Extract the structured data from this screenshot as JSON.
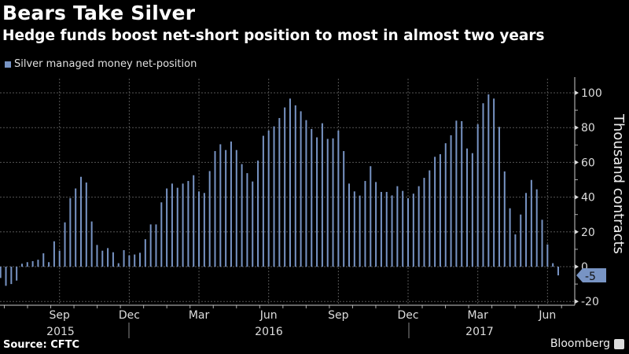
{
  "title": "Bears Take Silver",
  "subtitle": "Hedge funds boost net-short position to most in almost two years",
  "source": "Source: CFTC",
  "brand": "Bloomberg",
  "colors": {
    "bar": "#7894c4",
    "background": "#000000",
    "grid": "#555555"
  },
  "chart_data": {
    "type": "bar",
    "title": "Bears Take Silver",
    "subtitle": "Hedge funds boost net-short position to most in almost two years",
    "legend": [
      "Silver managed money net-position"
    ],
    "legend_position": "top-left",
    "series": [
      {
        "name": "Silver managed money net-position",
        "values": [
          -6.5,
          -11,
          -10,
          -8,
          1.7,
          2.6,
          3.2,
          4,
          7.7,
          2.6,
          14.6,
          9.2,
          25.5,
          39.4,
          45,
          51.7,
          48.4,
          26,
          12.5,
          9.2,
          10.7,
          8.3,
          2,
          9.5,
          6.5,
          7,
          8,
          15.8,
          24.3,
          24.3,
          37,
          45,
          47.8,
          45.4,
          47.8,
          49.3,
          52.6,
          43.3,
          42.4,
          55,
          66.5,
          70.4,
          67.1,
          72,
          67.1,
          59,
          53.8,
          49,
          61,
          75.3,
          78.3,
          80.7,
          85.5,
          91.6,
          96.7,
          92.8,
          89.4,
          84.3,
          79.2,
          74.4,
          82.5,
          73.5,
          73.8,
          78.3,
          66.5,
          47.8,
          43.3,
          40.9,
          49.3,
          57.8,
          48.7,
          43,
          43,
          41,
          46.3,
          43.6,
          39.4,
          42,
          46.3,
          51.1,
          55.4,
          63.2,
          64.7,
          71,
          75.6,
          84,
          83.7,
          68,
          65.3,
          81.9,
          94,
          99.1,
          96.7,
          80.4,
          54.8,
          33.6,
          18.6,
          30,
          42.4,
          49.9,
          44.5,
          27,
          12.8,
          2,
          -5
        ]
      }
    ],
    "x_tick_labels": [
      "Sep",
      "Dec",
      "Mar",
      "Jun",
      "Sep",
      "Dec",
      "Mar",
      "Jun"
    ],
    "x_year_labels": [
      "2015",
      "2016",
      "2017"
    ],
    "ylabel": "Thousand contracts",
    "y_ticks": [
      -20,
      0,
      20,
      40,
      60,
      80,
      100
    ],
    "ylim": [
      -22,
      105
    ],
    "y_axis_position": "right",
    "grid": true,
    "last_value_label": "-5"
  }
}
